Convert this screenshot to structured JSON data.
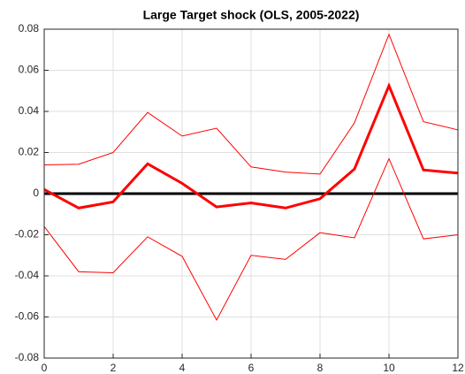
{
  "chart_data": {
    "type": "line",
    "title": "Large Target shock (OLS, 2005-2022)",
    "x": [
      0,
      1,
      2,
      3,
      4,
      5,
      6,
      7,
      8,
      9,
      10,
      11,
      12
    ],
    "series": [
      {
        "color": "#ff0000",
        "width": 3,
        "values": [
          0.002,
          -0.007,
          -0.004,
          0.0145,
          0.005,
          -0.0065,
          -0.0045,
          -0.007,
          -0.0025,
          0.012,
          0.0525,
          0.0115,
          0.01
        ]
      },
      {
        "color": "#ff0000",
        "width": 1,
        "values": [
          0.014,
          0.0143,
          0.02,
          0.0395,
          0.028,
          0.0318,
          0.013,
          0.0105,
          0.0095,
          0.0345,
          0.0775,
          0.035,
          0.031
        ]
      },
      {
        "color": "#ff0000",
        "width": 1,
        "values": [
          -0.016,
          -0.038,
          -0.0385,
          -0.021,
          -0.0305,
          -0.0615,
          -0.03,
          -0.032,
          -0.019,
          -0.0215,
          0.017,
          -0.022,
          -0.02
        ]
      }
    ],
    "reference_line": {
      "value": 0,
      "color": "#000000"
    },
    "xlim": [
      0,
      12
    ],
    "xticks": [
      0,
      2,
      4,
      6,
      8,
      10,
      12
    ],
    "ylim": [
      -0.08,
      0.08
    ],
    "yticks": [
      -0.08,
      -0.06,
      -0.04,
      -0.02,
      0,
      0.02,
      0.04,
      0.06,
      0.08
    ],
    "grid": true
  }
}
